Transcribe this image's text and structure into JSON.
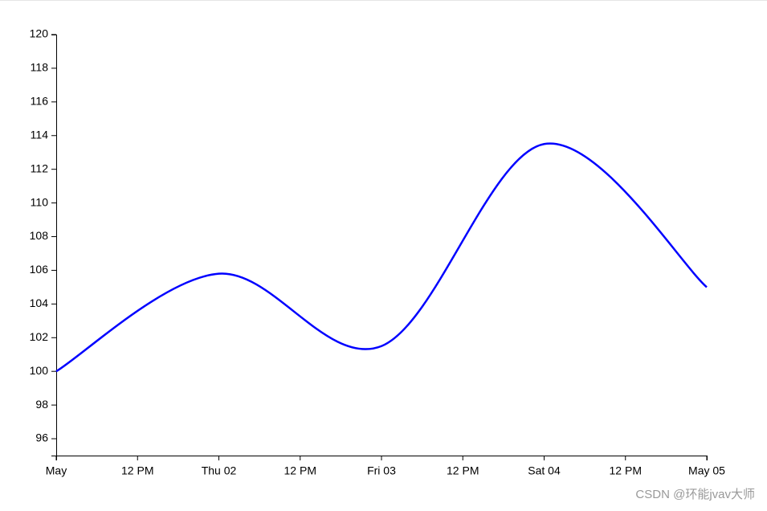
{
  "chart_data": {
    "type": "line",
    "x": [
      0,
      1,
      2,
      3,
      4
    ],
    "values": [
      100,
      105.8,
      101.5,
      113.5,
      105
    ],
    "color": "#0000ff",
    "xlim": [
      0,
      4
    ],
    "xticks": [
      {
        "value": 0,
        "label": "May"
      },
      {
        "value": 0.5,
        "label": "12 PM"
      },
      {
        "value": 1,
        "label": "Thu 02"
      },
      {
        "value": 1.5,
        "label": "12 PM"
      },
      {
        "value": 2,
        "label": "Fri 03"
      },
      {
        "value": 2.5,
        "label": "12 PM"
      },
      {
        "value": 3,
        "label": "Sat 04"
      },
      {
        "value": 3.5,
        "label": "12 PM"
      },
      {
        "value": 4,
        "label": "May 05"
      }
    ],
    "ylim": [
      95,
      120
    ],
    "yticks": [
      96,
      98,
      100,
      102,
      104,
      106,
      108,
      110,
      112,
      114,
      116,
      118,
      120
    ]
  },
  "watermark": "CSDN @环能jvav大师"
}
